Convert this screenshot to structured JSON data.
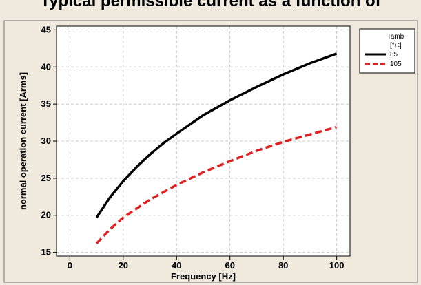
{
  "chart_data": {
    "type": "line",
    "title": "Typical permissible current as a function of",
    "xlabel": "Frequency [Hz]",
    "ylabel": "normal operation current [Arms]",
    "xlim": [
      -5,
      105
    ],
    "ylim": [
      14.5,
      45.5
    ],
    "x_ticks": [
      "0",
      "20",
      "40",
      "60",
      "80",
      "100"
    ],
    "y_ticks": [
      "15",
      "20",
      "25",
      "30",
      "35",
      "40",
      "45"
    ],
    "grid": true,
    "legend": {
      "position": "right",
      "title_line1": "Tamb",
      "title_line2": "[°C]"
    },
    "series": [
      {
        "name": "85",
        "color": "#000000",
        "style": "solid",
        "x": [
          10,
          15,
          20,
          25,
          30,
          35,
          40,
          50,
          60,
          70,
          80,
          90,
          100
        ],
        "y": [
          19.7,
          22.4,
          24.6,
          26.5,
          28.2,
          29.7,
          31.0,
          33.5,
          35.5,
          37.3,
          39.0,
          40.5,
          41.8
        ]
      },
      {
        "name": "105",
        "color": "#e02020",
        "style": "dashed",
        "x": [
          10,
          15,
          20,
          25,
          30,
          35,
          40,
          50,
          60,
          70,
          80,
          90,
          100
        ],
        "y": [
          16.2,
          18.1,
          19.7,
          20.9,
          22.1,
          23.1,
          24.1,
          25.8,
          27.3,
          28.7,
          29.9,
          30.9,
          31.9
        ]
      }
    ]
  }
}
